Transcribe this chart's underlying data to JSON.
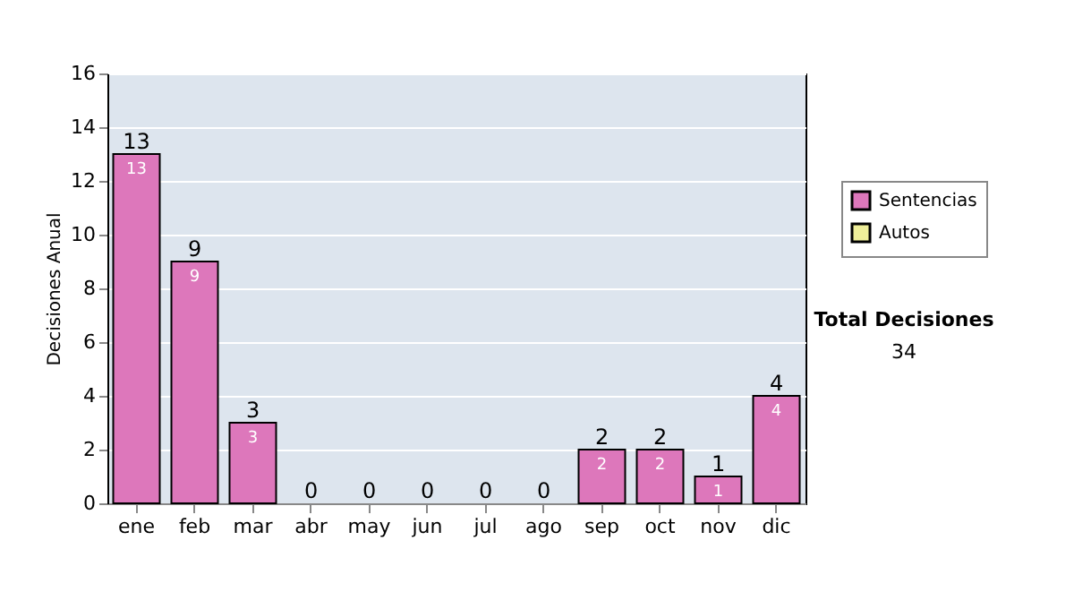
{
  "chart_data": {
    "type": "bar",
    "stacked": true,
    "ylabel": "Decisiones Anual",
    "categories": [
      "ene",
      "feb",
      "mar",
      "abr",
      "may",
      "jun",
      "jul",
      "ago",
      "sep",
      "oct",
      "nov",
      "dic"
    ],
    "series": [
      {
        "name": "Sentencias",
        "color": "#dd77bb",
        "values": [
          13,
          9,
          3,
          0,
          0,
          0,
          0,
          0,
          2,
          2,
          1,
          4
        ],
        "value_labels": [
          "13",
          "9",
          "3",
          null,
          null,
          null,
          null,
          null,
          "2",
          "2",
          "1",
          "4"
        ]
      },
      {
        "name": "Autos",
        "color": "#eeee99",
        "values": [
          0,
          0,
          0,
          0,
          0,
          0,
          0,
          0,
          0,
          0,
          0,
          0
        ]
      }
    ],
    "totals": [
      "13",
      "9",
      "3",
      "0",
      "0",
      "0",
      "0",
      "0",
      "2",
      "2",
      "1",
      "4"
    ],
    "ylim": [
      0,
      16
    ],
    "yticks": [
      0,
      2,
      4,
      6,
      8,
      10,
      12,
      14,
      16
    ],
    "grid": "y",
    "legend": "right",
    "annotations": [
      "Total Decisiones",
      "34"
    ]
  }
}
